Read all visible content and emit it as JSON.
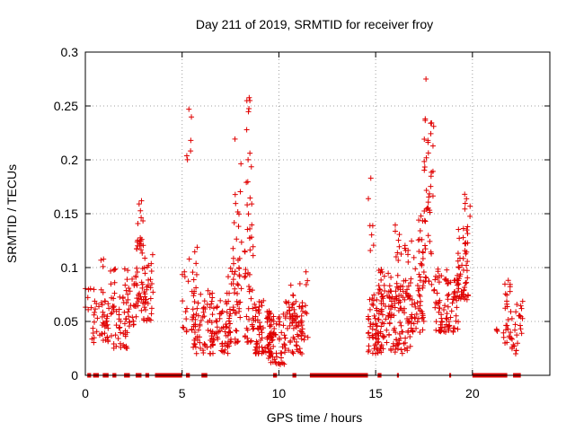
{
  "chart_data": {
    "type": "scatter",
    "title": "Day 211 of 2019, SRMTID for receiver froy",
    "xlabel": "GPS time / hours",
    "ylabel": "SRMTID / TECUs",
    "xlim": [
      0,
      24
    ],
    "ylim": [
      0,
      0.3
    ],
    "x_ticks": [
      0,
      5,
      10,
      15,
      20
    ],
    "x_tick_labels": [
      "0",
      "5",
      "10",
      "15",
      "20"
    ],
    "y_ticks": [
      0,
      0.05,
      0.1,
      0.15,
      0.2,
      0.25,
      0.3
    ],
    "y_tick_labels": [
      "0",
      "0.05",
      "0.1",
      "0.15",
      "0.2",
      "0.25",
      "0.3"
    ],
    "grid": true,
    "marker": "+",
    "series_color": "#e00000",
    "zero_segments": [
      [
        0.1,
        0.3
      ],
      [
        0.4,
        0.7
      ],
      [
        0.9,
        1.2
      ],
      [
        1.4,
        1.6
      ],
      [
        2.0,
        2.3
      ],
      [
        2.6,
        2.9
      ],
      [
        3.1,
        3.3
      ],
      [
        3.6,
        5.0
      ],
      [
        5.2,
        5.4
      ],
      [
        6.0,
        6.3
      ],
      [
        9.7,
        9.9
      ],
      [
        10.7,
        10.9
      ],
      [
        11.6,
        14.6
      ],
      [
        15.1,
        15.3
      ],
      [
        16.1,
        16.2
      ],
      [
        18.8,
        18.9
      ],
      [
        20.0,
        21.8
      ],
      [
        22.1,
        22.5
      ]
    ],
    "clusters": [
      {
        "x": [
          0.0,
          0.3
        ],
        "y": [
          0.06,
          0.09
        ],
        "n": 6
      },
      {
        "x": [
          0.3,
          1.2
        ],
        "y": [
          0.03,
          0.08
        ],
        "n": 40
      },
      {
        "x": [
          0.8,
          1.6
        ],
        "y": [
          0.04,
          0.11
        ],
        "n": 20
      },
      {
        "x": [
          1.3,
          2.2
        ],
        "y": [
          0.025,
          0.08
        ],
        "n": 40
      },
      {
        "x": [
          2.0,
          2.7
        ],
        "y": [
          0.04,
          0.1
        ],
        "n": 30
      },
      {
        "x": [
          2.6,
          3.1
        ],
        "y": [
          0.06,
          0.13
        ],
        "n": 35
      },
      {
        "x": [
          2.7,
          3.0
        ],
        "y": [
          0.12,
          0.16
        ],
        "n": 10
      },
      {
        "x": [
          3.0,
          3.5
        ],
        "y": [
          0.05,
          0.12
        ],
        "n": 30
      },
      {
        "x": [
          5.0,
          5.8
        ],
        "y": [
          0.04,
          0.12
        ],
        "n": 30
      },
      {
        "x": [
          5.2,
          5.5
        ],
        "y": [
          0.2,
          0.25
        ],
        "n": 5
      },
      {
        "x": [
          5.5,
          6.6
        ],
        "y": [
          0.02,
          0.08
        ],
        "n": 60
      },
      {
        "x": [
          6.5,
          7.5
        ],
        "y": [
          0.02,
          0.07
        ],
        "n": 60
      },
      {
        "x": [
          7.3,
          8.0
        ],
        "y": [
          0.03,
          0.1
        ],
        "n": 45
      },
      {
        "x": [
          7.6,
          8.1
        ],
        "y": [
          0.08,
          0.22
        ],
        "n": 20
      },
      {
        "x": [
          8.2,
          8.7
        ],
        "y": [
          0.03,
          0.12
        ],
        "n": 35
      },
      {
        "x": [
          8.3,
          8.6
        ],
        "y": [
          0.12,
          0.26
        ],
        "n": 20
      },
      {
        "x": [
          8.7,
          9.6
        ],
        "y": [
          0.02,
          0.07
        ],
        "n": 60
      },
      {
        "x": [
          9.4,
          10.3
        ],
        "y": [
          0.01,
          0.06
        ],
        "n": 70
      },
      {
        "x": [
          10.3,
          11.2
        ],
        "y": [
          0.02,
          0.07
        ],
        "n": 60
      },
      {
        "x": [
          10.6,
          11.5
        ],
        "y": [
          0.03,
          0.09
        ],
        "n": 30
      },
      {
        "x": [
          14.6,
          14.9
        ],
        "y": [
          0.1,
          0.18
        ],
        "n": 6
      },
      {
        "x": [
          14.6,
          15.4
        ],
        "y": [
          0.02,
          0.08
        ],
        "n": 60
      },
      {
        "x": [
          15.0,
          15.8
        ],
        "y": [
          0.03,
          0.1
        ],
        "n": 50
      },
      {
        "x": [
          15.7,
          16.8
        ],
        "y": [
          0.02,
          0.08
        ],
        "n": 70
      },
      {
        "x": [
          16.0,
          16.7
        ],
        "y": [
          0.06,
          0.14
        ],
        "n": 35
      },
      {
        "x": [
          16.7,
          17.5
        ],
        "y": [
          0.04,
          0.13
        ],
        "n": 50
      },
      {
        "x": [
          17.2,
          17.9
        ],
        "y": [
          0.08,
          0.15
        ],
        "n": 30
      },
      {
        "x": [
          17.5,
          18.0
        ],
        "y": [
          0.15,
          0.25
        ],
        "n": 30
      },
      {
        "x": [
          18.0,
          18.8
        ],
        "y": [
          0.04,
          0.1
        ],
        "n": 50
      },
      {
        "x": [
          18.6,
          19.3
        ],
        "y": [
          0.04,
          0.09
        ],
        "n": 40
      },
      {
        "x": [
          19.2,
          19.8
        ],
        "y": [
          0.07,
          0.14
        ],
        "n": 50
      },
      {
        "x": [
          19.5,
          19.9
        ],
        "y": [
          0.12,
          0.17
        ],
        "n": 8
      },
      {
        "x": [
          21.2,
          21.4
        ],
        "y": [
          0.04,
          0.05
        ],
        "n": 3
      },
      {
        "x": [
          21.6,
          22.0
        ],
        "y": [
          0.03,
          0.09
        ],
        "n": 25
      },
      {
        "x": [
          22.0,
          22.6
        ],
        "y": [
          0.02,
          0.07
        ],
        "n": 25
      }
    ],
    "peaks": [
      {
        "x": 17.6,
        "y": 0.275
      },
      {
        "x": 8.5,
        "y": 0.255
      },
      {
        "x": 5.35,
        "y": 0.247
      },
      {
        "x": 14.75,
        "y": 0.183
      },
      {
        "x": 2.9,
        "y": 0.162
      },
      {
        "x": 19.6,
        "y": 0.168
      },
      {
        "x": 11.4,
        "y": 0.096
      }
    ]
  }
}
